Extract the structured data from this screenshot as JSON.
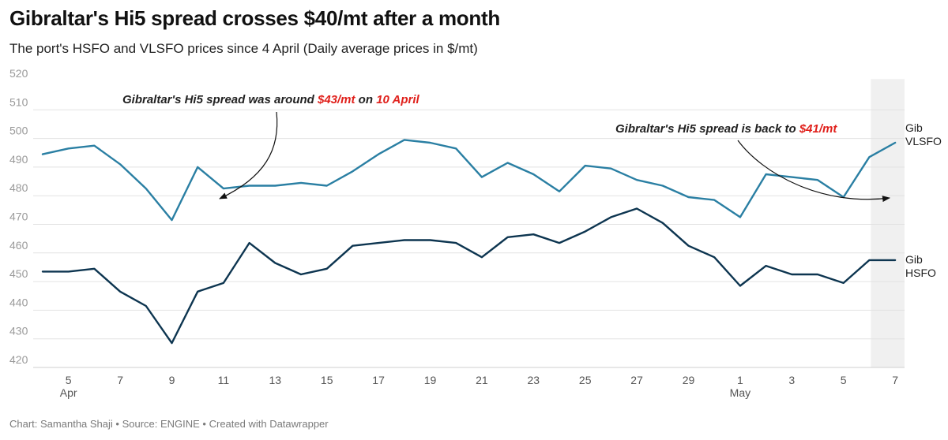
{
  "header": {
    "title": "Gibraltar's Hi5 spread crosses $40/mt after a month",
    "subtitle": "The port's HSFO and VLSFO prices since 4 April (Daily average prices in $/mt)"
  },
  "footer": {
    "credit": "Chart: Samantha Shaji • Source: ENGINE • Created with Datawrapper"
  },
  "chart_data": {
    "type": "line",
    "title": "Gibraltar's Hi5 spread crosses $40/mt after a month",
    "subtitle": "The port's HSFO and VLSFO prices since 4 April (Daily average prices in $/mt)",
    "ylim": [
      420,
      520
    ],
    "yticks": [
      "520",
      "510",
      "500",
      "490",
      "480",
      "470",
      "460",
      "450",
      "440",
      "430",
      "420"
    ],
    "x": [
      "4 Apr",
      "5 Apr",
      "6 Apr",
      "7 Apr",
      "8 Apr",
      "9 Apr",
      "10 Apr",
      "11 Apr",
      "12 Apr",
      "13 Apr",
      "14 Apr",
      "15 Apr",
      "16 Apr",
      "17 Apr",
      "18 Apr",
      "19 Apr",
      "20 Apr",
      "21 Apr",
      "22 Apr",
      "23 Apr",
      "24 Apr",
      "25 Apr",
      "26 Apr",
      "27 Apr",
      "28 Apr",
      "29 Apr",
      "30 Apr",
      "1 May",
      "2 May",
      "3 May",
      "4 May",
      "5 May",
      "6 May",
      "7 May"
    ],
    "xticks": [
      {
        "label": "5",
        "sub": "Apr",
        "index": 1
      },
      {
        "label": "7",
        "sub": "",
        "index": 3
      },
      {
        "label": "9",
        "sub": "",
        "index": 5
      },
      {
        "label": "11",
        "sub": "",
        "index": 7
      },
      {
        "label": "13",
        "sub": "",
        "index": 9
      },
      {
        "label": "15",
        "sub": "",
        "index": 11
      },
      {
        "label": "17",
        "sub": "",
        "index": 13
      },
      {
        "label": "19",
        "sub": "",
        "index": 15
      },
      {
        "label": "21",
        "sub": "",
        "index": 17
      },
      {
        "label": "23",
        "sub": "",
        "index": 19
      },
      {
        "label": "25",
        "sub": "",
        "index": 21
      },
      {
        "label": "27",
        "sub": "",
        "index": 23
      },
      {
        "label": "29",
        "sub": "",
        "index": 25
      },
      {
        "label": "1",
        "sub": "May",
        "index": 27
      },
      {
        "label": "3",
        "sub": "",
        "index": 29
      },
      {
        "label": "5",
        "sub": "",
        "index": 31
      },
      {
        "label": "7",
        "sub": "",
        "index": 33
      }
    ],
    "highlight_range": [
      "6 May",
      "7 May"
    ],
    "series": [
      {
        "name": "Gib VLSFO",
        "label_lines": [
          "Gib",
          "VLSFO"
        ],
        "color": "#2a7fa3",
        "values": [
          494.5,
          496.5,
          497.5,
          491,
          482.5,
          471.5,
          490,
          482.5,
          483.5,
          483.5,
          484.5,
          483.5,
          488.5,
          494.5,
          499.5,
          498.5,
          496.5,
          486.5,
          491.5,
          487.5,
          481.5,
          490.5,
          489.5,
          485.5,
          483.5,
          479.5,
          478.5,
          472.5,
          487.5,
          486.5,
          485.5,
          479.5,
          493.5,
          498.5
        ]
      },
      {
        "name": "Gib HSFO",
        "label_lines": [
          "Gib",
          "HSFO"
        ],
        "color": "#0d3550",
        "values": [
          453.5,
          453.5,
          454.5,
          446.5,
          441.5,
          428.5,
          446.5,
          449.5,
          463.5,
          456.5,
          452.5,
          454.5,
          462.5,
          463.5,
          464.5,
          464.5,
          463.5,
          458.5,
          465.5,
          466.5,
          463.5,
          467.5,
          472.5,
          475.5,
          470.5,
          462.5,
          458.5,
          448.5,
          455.5,
          452.5,
          452.5,
          449.5,
          457.5,
          457.5
        ]
      }
    ],
    "annotations": [
      {
        "parts": [
          {
            "text": "Gibraltar's Hi5 spread was around ",
            "red": false
          },
          {
            "text": "$43/mt",
            "red": true
          },
          {
            "text": " on ",
            "red": false
          },
          {
            "text": "10 April",
            "red": true
          }
        ]
      },
      {
        "parts": [
          {
            "text": "Gibraltar's Hi5 spread is back to ",
            "red": false
          },
          {
            "text": "$41/mt",
            "red": true
          }
        ]
      }
    ]
  }
}
